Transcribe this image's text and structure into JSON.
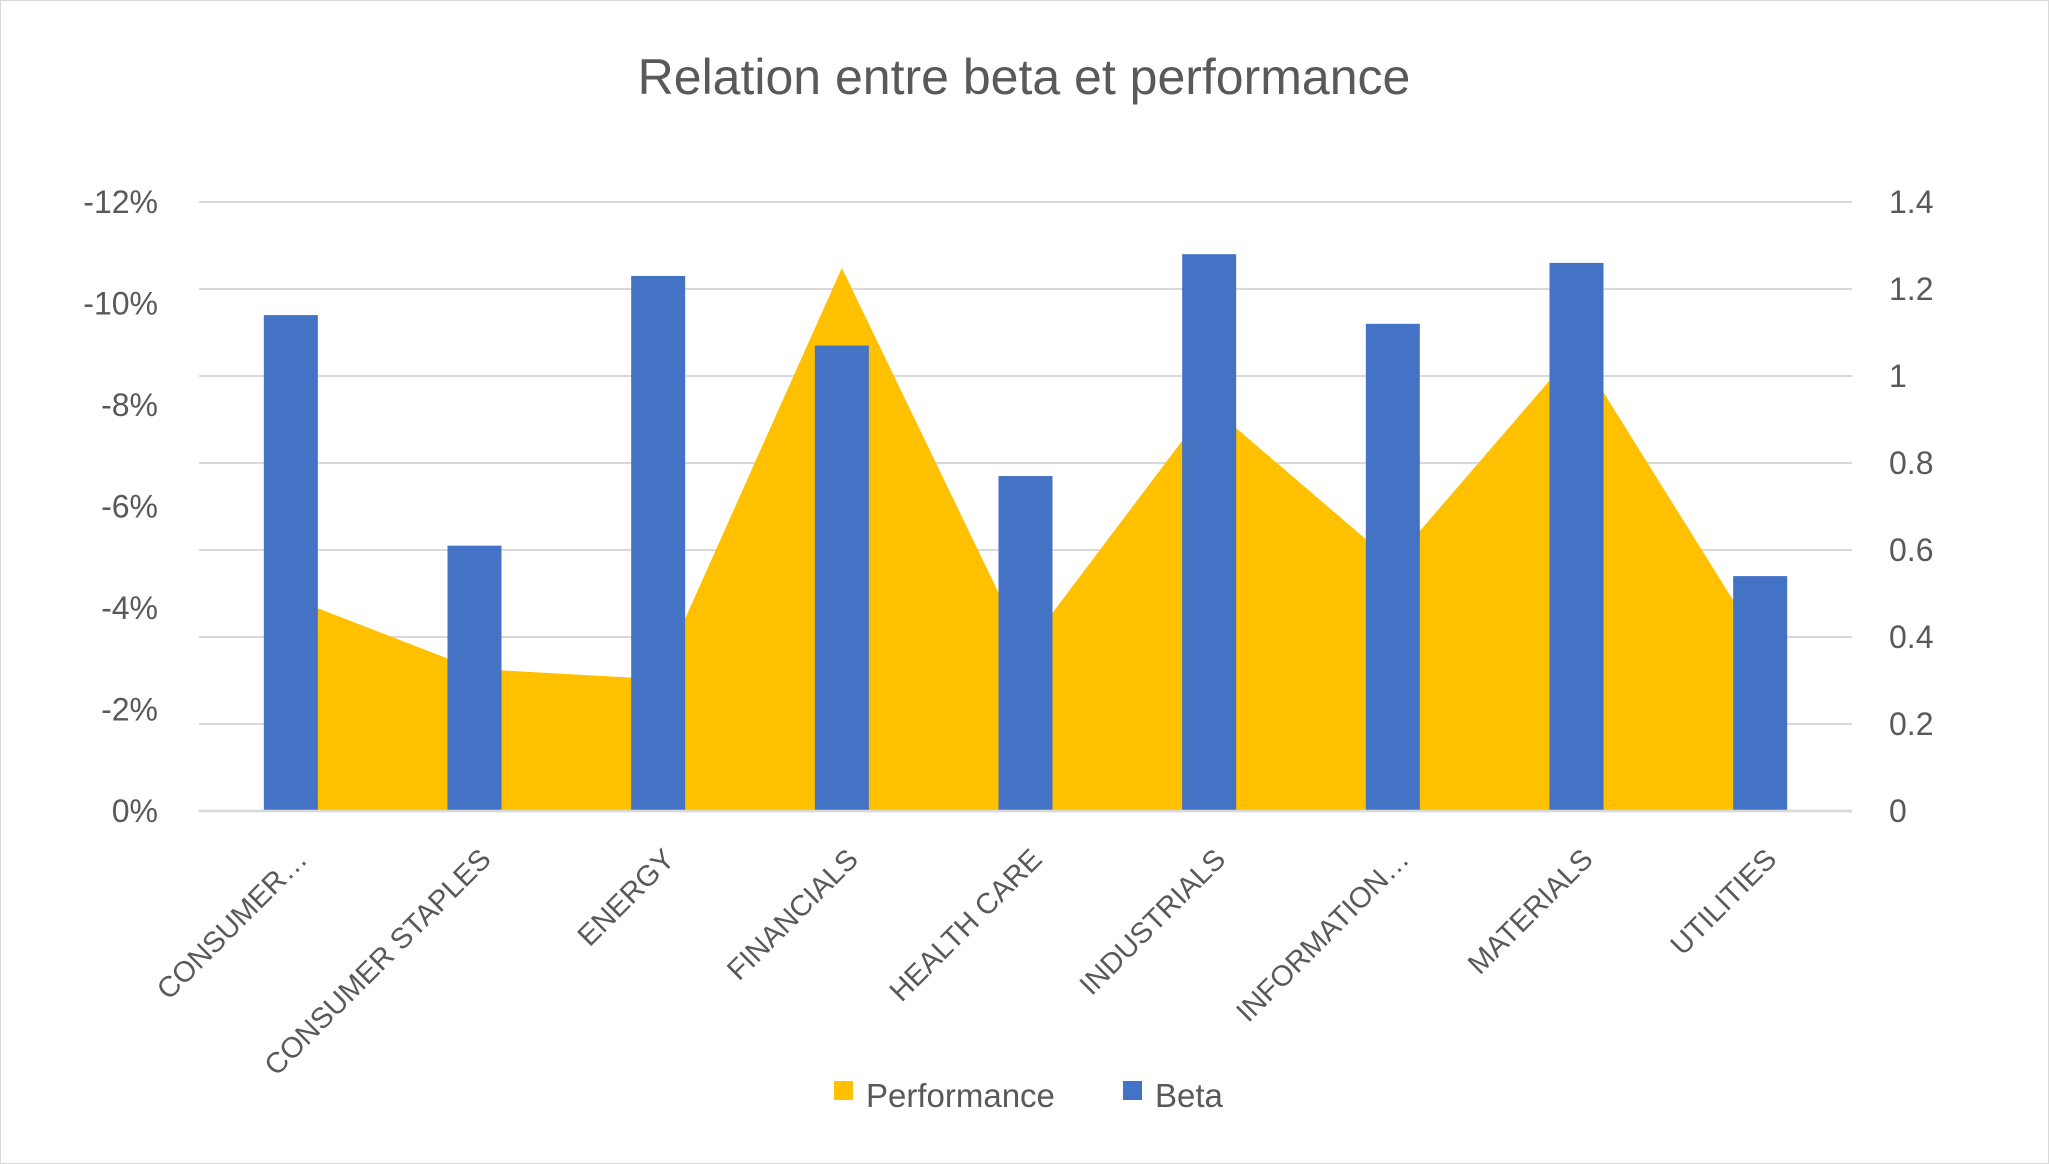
{
  "chart_data": {
    "type": "bar",
    "title": "Relation entre beta et performance",
    "categories": [
      "CONSUMER…",
      "CONSUMER STAPLES",
      "ENERGY",
      "FINANCIALS",
      "HEALTH CARE",
      "INDUSTRIALS",
      "INFORMATION…",
      "MATERIALS",
      "UTILITIES"
    ],
    "series": [
      {
        "name": "Performance",
        "kind": "area",
        "axis": "left",
        "color": "#FFC000",
        "values": [
          -0.042,
          -0.028,
          -0.026,
          -0.107,
          -0.032,
          -0.08,
          -0.049,
          -0.091,
          -0.033
        ]
      },
      {
        "name": "Beta",
        "kind": "bar",
        "axis": "right",
        "color": "#4472C4",
        "values": [
          1.14,
          0.61,
          1.23,
          1.07,
          0.77,
          1.28,
          1.12,
          1.26,
          0.54
        ]
      }
    ],
    "y_left": {
      "ylim": [
        0,
        -0.12
      ],
      "reversed": true,
      "ticks": [
        0,
        -0.02,
        -0.04,
        -0.06,
        -0.08,
        -0.1,
        -0.12
      ],
      "tick_labels": [
        "0%",
        "-2%",
        "-4%",
        "-6%",
        "-8%",
        "-10%",
        "-12%"
      ]
    },
    "y_right": {
      "ylim": [
        0,
        1.4
      ],
      "ticks": [
        0,
        0.2,
        0.4,
        0.6,
        0.8,
        1.0,
        1.2,
        1.4
      ],
      "tick_labels": [
        "0",
        "0.2",
        "0.4",
        "0.6",
        "0.8",
        "1",
        "1.2",
        "1.4"
      ]
    },
    "grid": true,
    "legend": {
      "position": "bottom",
      "entries": [
        "Performance",
        "Beta"
      ]
    }
  }
}
